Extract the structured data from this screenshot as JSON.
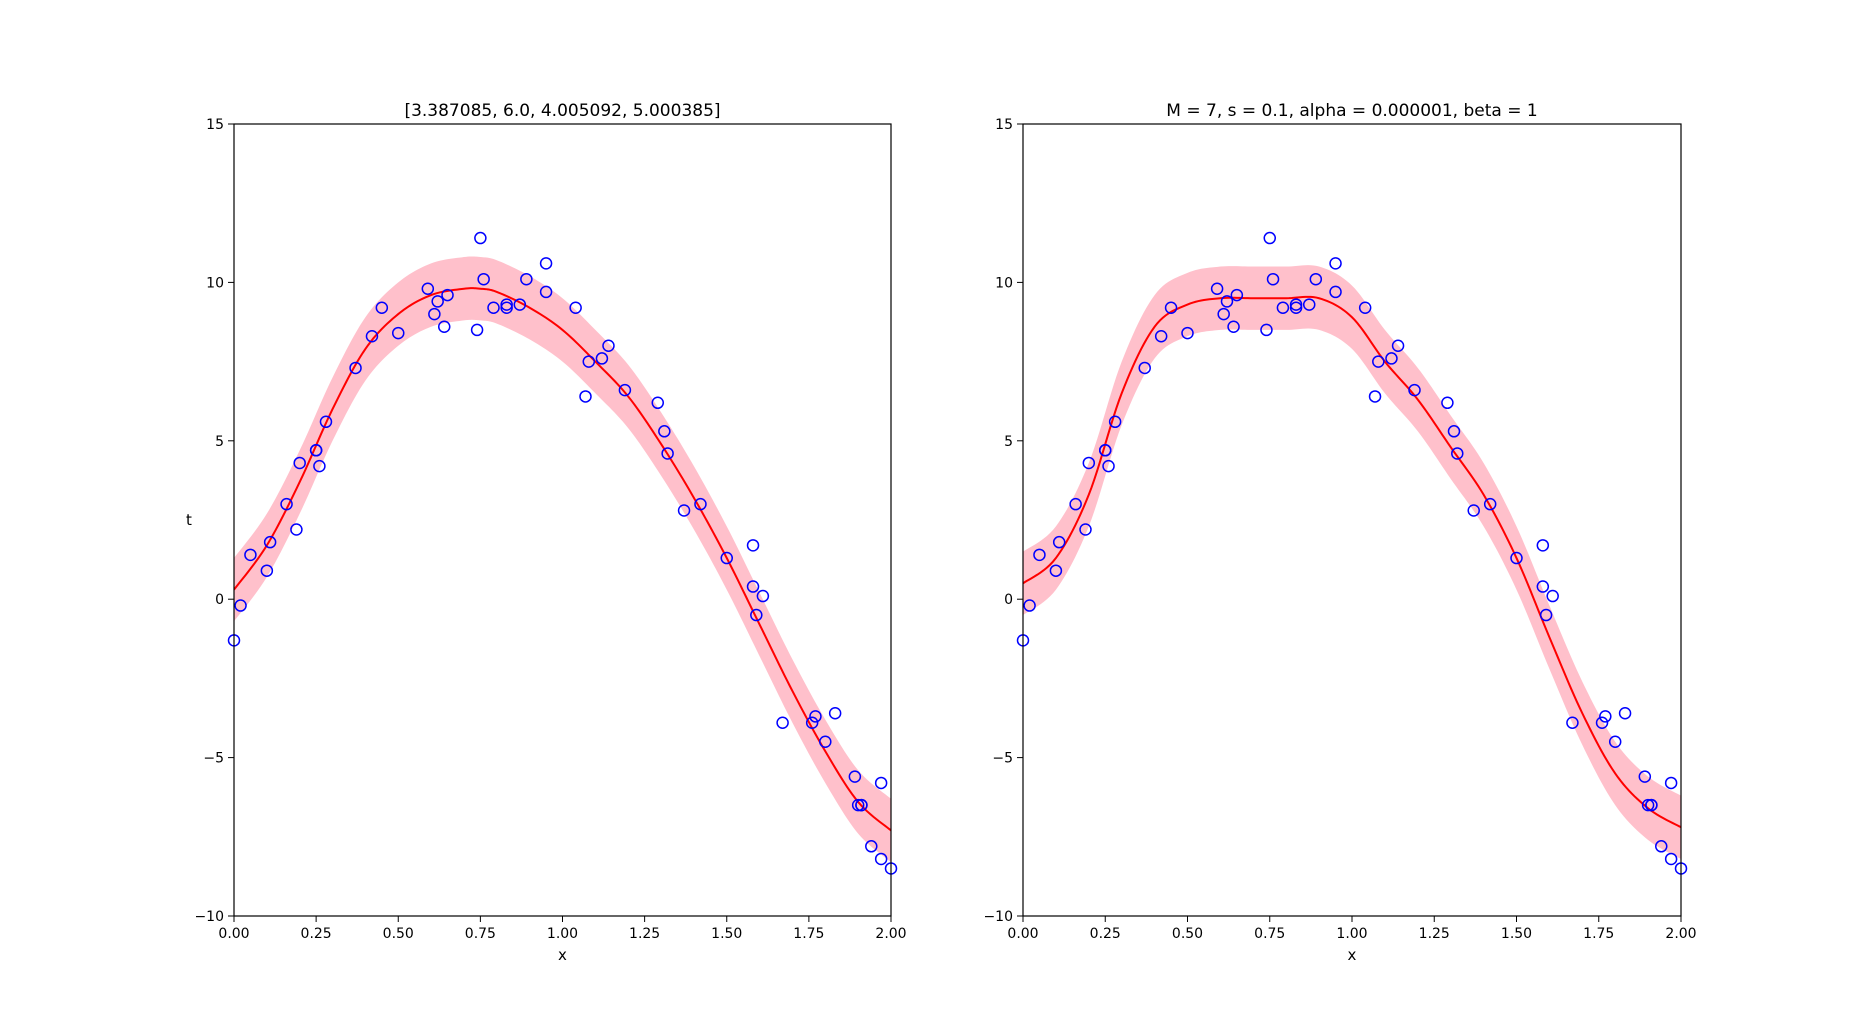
{
  "chart_data": [
    {
      "type": "scatter",
      "title": "[3.387085, 6.0, 4.005092, 5.000385]",
      "xlabel": "x",
      "ylabel": "t",
      "xlim": [
        0.0,
        2.0
      ],
      "ylim": [
        -10,
        15
      ],
      "xticks": [
        0.0,
        0.25,
        0.5,
        0.75,
        1.0,
        1.25,
        1.5,
        1.75,
        2.0
      ],
      "xtick_labels": [
        "0.00",
        "0.25",
        "0.50",
        "0.75",
        "1.00",
        "1.25",
        "1.50",
        "1.75",
        "2.00"
      ],
      "yticks": [
        -10,
        -5,
        0,
        5,
        10,
        15
      ],
      "ytick_labels": [
        "−10",
        "−5",
        "0",
        "5",
        "10",
        "15"
      ],
      "grid": false,
      "colors": {
        "points": "#0000ff",
        "mean": "#ff0000",
        "band": "#ffc0cb"
      },
      "observations": {
        "x": [
          0.0,
          0.02,
          0.05,
          0.1,
          0.11,
          0.16,
          0.19,
          0.2,
          0.25,
          0.25,
          0.26,
          0.28,
          0.37,
          0.42,
          0.45,
          0.5,
          0.59,
          0.61,
          0.62,
          0.64,
          0.65,
          0.74,
          0.75,
          0.76,
          0.79,
          0.83,
          0.83,
          0.87,
          0.89,
          0.95,
          0.95,
          1.04,
          1.07,
          1.08,
          1.12,
          1.14,
          1.19,
          1.29,
          1.31,
          1.32,
          1.37,
          1.42,
          1.5,
          1.58,
          1.58,
          1.59,
          1.61,
          1.67,
          1.76,
          1.77,
          1.8,
          1.83,
          1.89,
          1.9,
          1.91,
          1.91,
          1.94,
          1.97,
          1.97,
          2.0
        ],
        "y": [
          -1.3,
          -0.2,
          1.4,
          0.9,
          1.8,
          3.0,
          2.2,
          4.3,
          4.7,
          4.7,
          4.2,
          5.6,
          7.3,
          8.3,
          9.2,
          8.4,
          9.8,
          9.0,
          9.4,
          8.6,
          9.6,
          8.5,
          11.4,
          10.1,
          9.2,
          9.3,
          9.2,
          9.3,
          10.1,
          10.6,
          9.7,
          9.2,
          6.4,
          7.5,
          7.6,
          8.0,
          6.6,
          6.2,
          5.3,
          4.6,
          2.8,
          3.0,
          1.3,
          1.7,
          0.4,
          -0.5,
          0.1,
          -3.9,
          -3.9,
          -3.7,
          -4.5,
          -3.6,
          -5.6,
          -6.5,
          -6.5,
          -6.5,
          -7.8,
          -8.2,
          -5.8,
          -8.5
        ]
      },
      "mean": {
        "x": [
          0.0,
          0.1,
          0.2,
          0.3,
          0.4,
          0.5,
          0.6,
          0.7,
          0.75,
          0.8,
          0.9,
          1.0,
          1.1,
          1.2,
          1.3,
          1.4,
          1.5,
          1.6,
          1.7,
          1.8,
          1.9,
          2.0
        ],
        "y": [
          0.3,
          1.7,
          3.7,
          6.0,
          7.9,
          9.0,
          9.6,
          9.8,
          9.8,
          9.7,
          9.2,
          8.5,
          7.5,
          6.4,
          4.9,
          3.2,
          1.3,
          -0.8,
          -2.9,
          -4.8,
          -6.4,
          -7.3
        ]
      },
      "band_halfwidth": 1.0
    },
    {
      "type": "scatter",
      "title": "M = 7, s = 0.1, alpha = 0.000001, beta = 1",
      "xlabel": "x",
      "ylabel": "",
      "xlim": [
        0.0,
        2.0
      ],
      "ylim": [
        -10,
        15
      ],
      "xticks": [
        0.0,
        0.25,
        0.5,
        0.75,
        1.0,
        1.25,
        1.5,
        1.75,
        2.0
      ],
      "xtick_labels": [
        "0.00",
        "0.25",
        "0.50",
        "0.75",
        "1.00",
        "1.25",
        "1.50",
        "1.75",
        "2.00"
      ],
      "yticks": [
        -10,
        -5,
        0,
        5,
        10,
        15
      ],
      "ytick_labels": [
        "−10",
        "−5",
        "0",
        "5",
        "10",
        "15"
      ],
      "grid": false,
      "colors": {
        "points": "#0000ff",
        "mean": "#ff0000",
        "band": "#ffc0cb"
      },
      "observations": {
        "x": [
          0.0,
          0.02,
          0.05,
          0.1,
          0.11,
          0.16,
          0.19,
          0.2,
          0.25,
          0.25,
          0.26,
          0.28,
          0.37,
          0.42,
          0.45,
          0.5,
          0.59,
          0.61,
          0.62,
          0.64,
          0.65,
          0.74,
          0.75,
          0.76,
          0.79,
          0.83,
          0.83,
          0.87,
          0.89,
          0.95,
          0.95,
          1.04,
          1.07,
          1.08,
          1.12,
          1.14,
          1.19,
          1.29,
          1.31,
          1.32,
          1.37,
          1.42,
          1.5,
          1.58,
          1.58,
          1.59,
          1.61,
          1.67,
          1.76,
          1.77,
          1.8,
          1.83,
          1.89,
          1.9,
          1.91,
          1.91,
          1.94,
          1.97,
          1.97,
          2.0
        ],
        "y": [
          -1.3,
          -0.2,
          1.4,
          0.9,
          1.8,
          3.0,
          2.2,
          4.3,
          4.7,
          4.7,
          4.2,
          5.6,
          7.3,
          8.3,
          9.2,
          8.4,
          9.8,
          9.0,
          9.4,
          8.6,
          9.6,
          8.5,
          11.4,
          10.1,
          9.2,
          9.3,
          9.2,
          9.3,
          10.1,
          10.6,
          9.7,
          9.2,
          6.4,
          7.5,
          7.6,
          8.0,
          6.6,
          6.2,
          5.3,
          4.6,
          2.8,
          3.0,
          1.3,
          1.7,
          0.4,
          -0.5,
          0.1,
          -3.9,
          -3.9,
          -3.7,
          -4.5,
          -3.6,
          -5.6,
          -6.5,
          -6.5,
          -6.5,
          -7.8,
          -8.2,
          -5.8,
          -8.5
        ]
      },
      "mean": {
        "x": [
          0.0,
          0.1,
          0.2,
          0.3,
          0.4,
          0.5,
          0.6,
          0.7,
          0.8,
          0.9,
          1.0,
          1.1,
          1.2,
          1.3,
          1.4,
          1.5,
          1.6,
          1.7,
          1.8,
          1.9,
          2.0
        ],
        "y": [
          0.5,
          1.3,
          3.3,
          6.5,
          8.6,
          9.3,
          9.5,
          9.5,
          9.5,
          9.5,
          8.9,
          7.5,
          6.3,
          4.8,
          3.3,
          1.3,
          -1.2,
          -3.6,
          -5.5,
          -6.6,
          -7.2
        ]
      },
      "band_halfwidth": 1.0
    }
  ]
}
